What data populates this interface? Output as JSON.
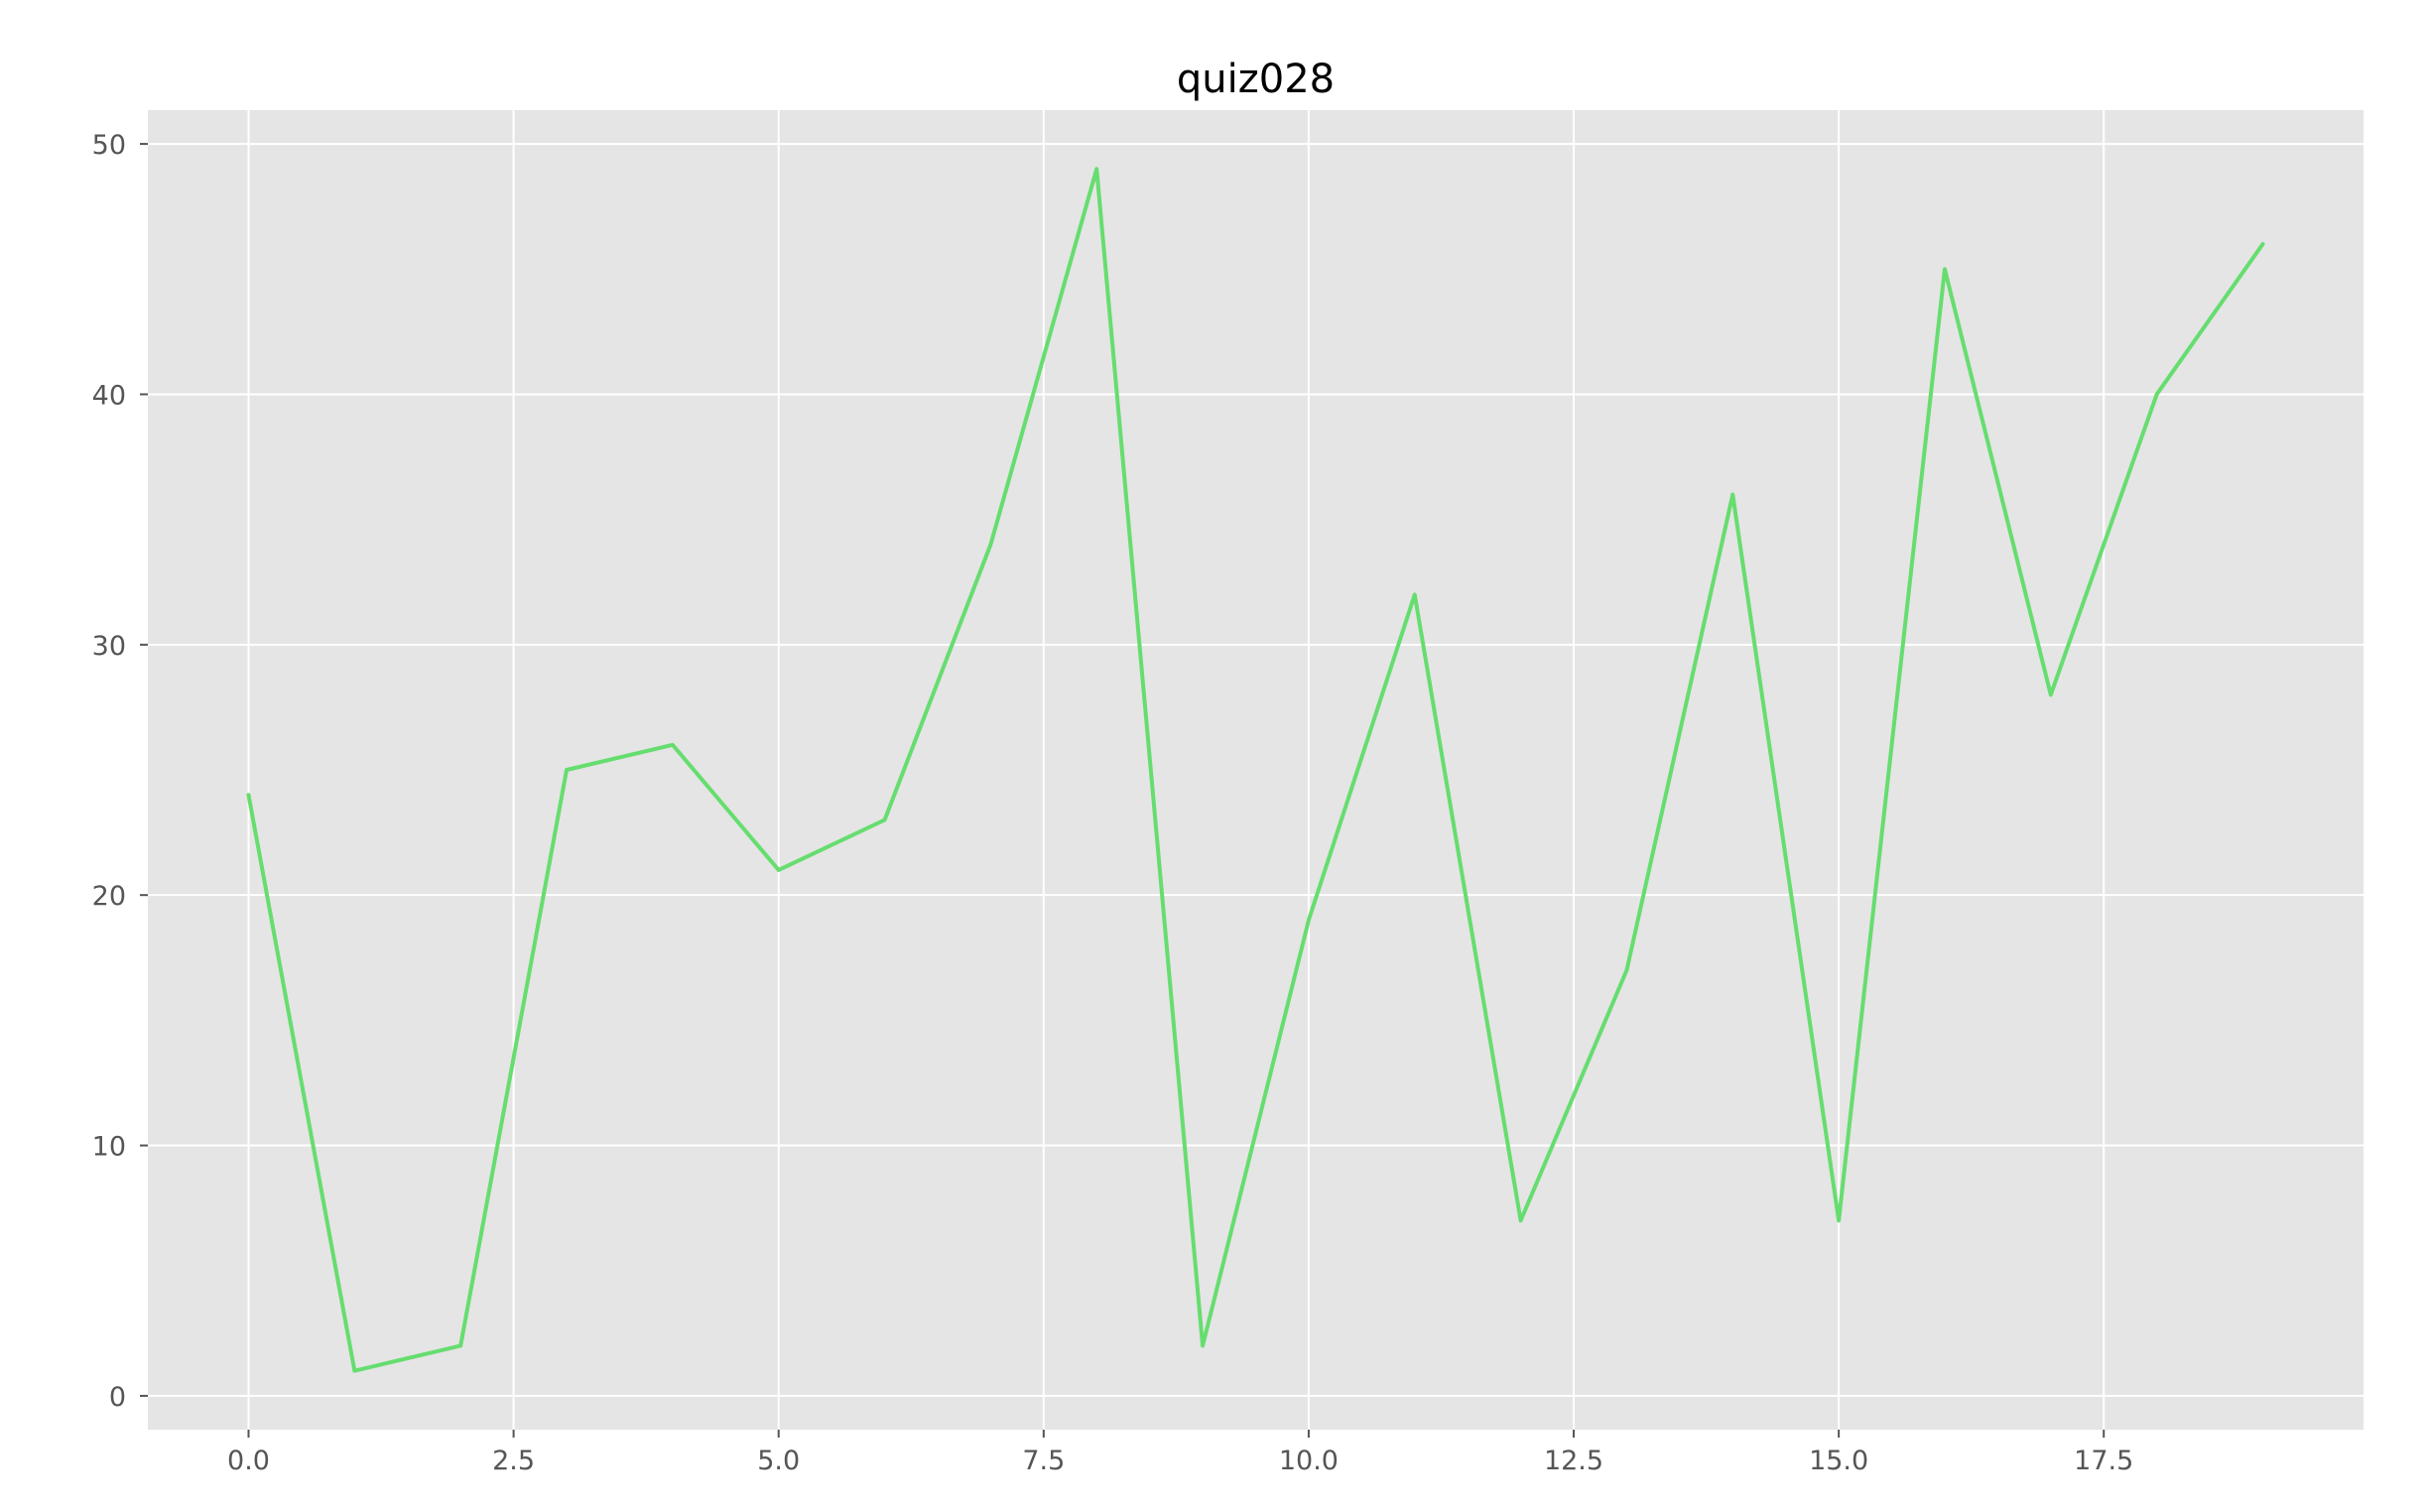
{
  "chart_data": {
    "type": "line",
    "title": "quiz028",
    "xlabel": "",
    "ylabel": "",
    "x": [
      0,
      1,
      2,
      3,
      4,
      5,
      6,
      7,
      8,
      9,
      10,
      11,
      12,
      13,
      14,
      15,
      16,
      17,
      18,
      19
    ],
    "series": [
      {
        "values": [
          24,
          1,
          2,
          25,
          26,
          21,
          23,
          34,
          49,
          2,
          19,
          32,
          7,
          17,
          36,
          7,
          45,
          28,
          40,
          46
        ],
        "color": "#66dd6f"
      }
    ],
    "xlim": [
      -0.95,
      19.95
    ],
    "ylim": [
      -1.35,
      51.35
    ],
    "xticks": [
      0.0,
      2.5,
      5.0,
      7.5,
      10.0,
      12.5,
      15.0,
      17.5
    ],
    "xtick_labels": [
      "0.0",
      "2.5",
      "5.0",
      "7.5",
      "10.0",
      "12.5",
      "15.0",
      "17.5"
    ],
    "yticks": [
      0,
      10,
      20,
      30,
      40,
      50
    ],
    "ytick_labels": [
      "0",
      "10",
      "20",
      "30",
      "40",
      "50"
    ],
    "grid": true,
    "style": {
      "plot_background": "#e5e5e5",
      "grid_color": "#ffffff",
      "tick_color": "#555555"
    }
  }
}
